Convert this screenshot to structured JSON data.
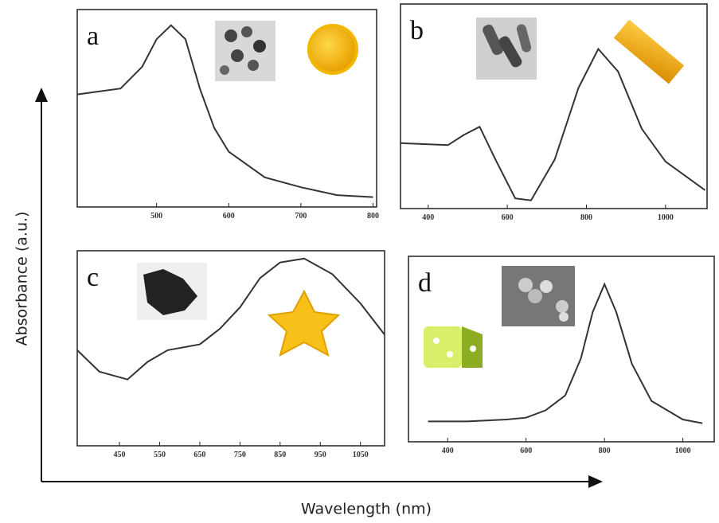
{
  "figure": {
    "x_label": "Wavelength (nm)",
    "y_label": "Absorbance (a.u.)"
  },
  "chart_data": [
    {
      "type": "line",
      "label": "a",
      "color": "#333333",
      "xlim": [
        390,
        805
      ],
      "ylim": [
        0,
        1
      ],
      "xticks": [
        500,
        600,
        700,
        800
      ],
      "x": [
        390,
        450,
        480,
        500,
        520,
        540,
        560,
        580,
        600,
        650,
        700,
        750,
        800
      ],
      "values": [
        0.57,
        0.6,
        0.71,
        0.85,
        0.92,
        0.85,
        0.6,
        0.4,
        0.28,
        0.15,
        0.1,
        0.06,
        0.05
      ]
    },
    {
      "type": "line",
      "label": "b",
      "color": "#333333",
      "xlim": [
        330,
        1105
      ],
      "ylim": [
        0,
        1
      ],
      "xticks": [
        400,
        600,
        800,
        1000
      ],
      "x": [
        330,
        450,
        490,
        530,
        570,
        620,
        660,
        720,
        780,
        830,
        880,
        940,
        1000,
        1100
      ],
      "values": [
        0.32,
        0.31,
        0.36,
        0.4,
        0.24,
        0.05,
        0.04,
        0.24,
        0.59,
        0.78,
        0.67,
        0.39,
        0.23,
        0.09
      ]
    },
    {
      "type": "line",
      "label": "c",
      "color": "#333333",
      "xlim": [
        345,
        1110
      ],
      "ylim": [
        0,
        1
      ],
      "xticks": [
        450,
        550,
        650,
        750,
        850,
        950,
        1050
      ],
      "x": [
        345,
        400,
        470,
        520,
        570,
        650,
        700,
        750,
        800,
        850,
        910,
        980,
        1050,
        1110
      ],
      "values": [
        0.49,
        0.38,
        0.34,
        0.43,
        0.49,
        0.52,
        0.6,
        0.71,
        0.86,
        0.94,
        0.96,
        0.88,
        0.73,
        0.57
      ]
    },
    {
      "type": "line",
      "label": "d",
      "color": "#333333",
      "xlim": [
        300,
        1080
      ],
      "ylim": [
        0,
        1
      ],
      "xticks": [
        400,
        600,
        800,
        1000
      ],
      "x": [
        350,
        450,
        550,
        600,
        650,
        700,
        740,
        770,
        800,
        830,
        870,
        920,
        1000,
        1050
      ],
      "values": [
        0.11,
        0.11,
        0.12,
        0.13,
        0.17,
        0.25,
        0.45,
        0.7,
        0.85,
        0.7,
        0.42,
        0.22,
        0.12,
        0.1
      ]
    }
  ]
}
